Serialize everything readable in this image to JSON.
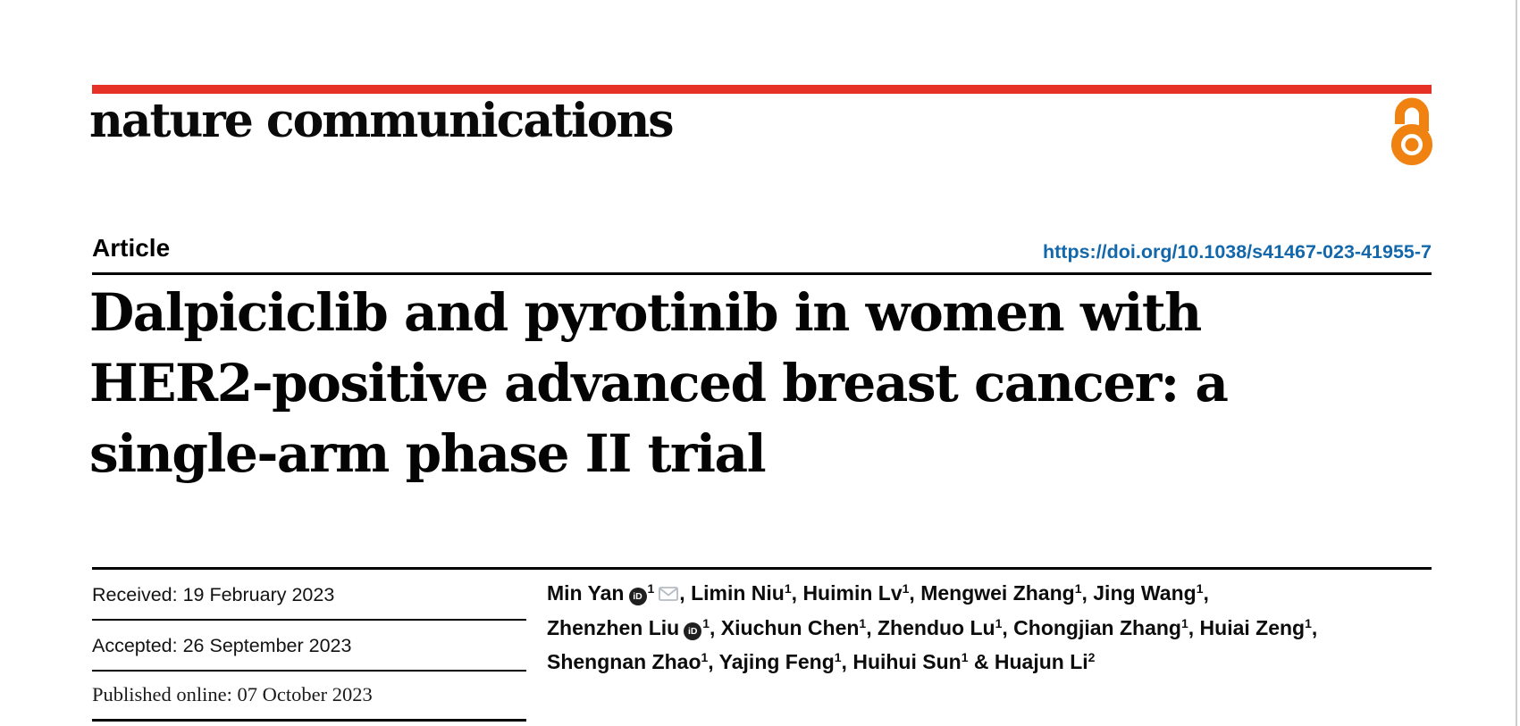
{
  "header": {
    "journal": "nature communications",
    "article_label": "Article",
    "doi": "https://doi.org/10.1038/s41467-023-41955-7"
  },
  "title": {
    "lines": [
      "Dalpiciclib and pyrotinib in women with",
      "HER2-positive advanced breast cancer: a",
      "single-arm phase II trial"
    ]
  },
  "dates": {
    "received": "Received: 19 February 2023",
    "accepted": "Accepted: 26 September 2023",
    "published": "Published online: 07 October 2023"
  },
  "authors": {
    "lines": [
      [
        {
          "t": "name",
          "v": "Min Yan"
        },
        {
          "t": "orcid"
        },
        {
          "t": "sup",
          "v": "1"
        },
        {
          "t": "mail"
        },
        {
          "t": "text",
          "v": ", "
        },
        {
          "t": "name",
          "v": "Limin Niu"
        },
        {
          "t": "sup",
          "v": "1"
        },
        {
          "t": "text",
          "v": ", "
        },
        {
          "t": "name",
          "v": "Huimin Lv"
        },
        {
          "t": "sup",
          "v": "1"
        },
        {
          "t": "text",
          "v": ", "
        },
        {
          "t": "name",
          "v": "Mengwei Zhang"
        },
        {
          "t": "sup",
          "v": "1"
        },
        {
          "t": "text",
          "v": ", "
        },
        {
          "t": "name",
          "v": "Jing Wang"
        },
        {
          "t": "sup",
          "v": "1"
        },
        {
          "t": "text",
          "v": ","
        }
      ],
      [
        {
          "t": "name",
          "v": "Zhenzhen Liu"
        },
        {
          "t": "orcid"
        },
        {
          "t": "sup",
          "v": "1"
        },
        {
          "t": "text",
          "v": ", "
        },
        {
          "t": "name",
          "v": "Xiuchun Chen"
        },
        {
          "t": "sup",
          "v": "1"
        },
        {
          "t": "text",
          "v": ", "
        },
        {
          "t": "name",
          "v": "Zhenduo Lu"
        },
        {
          "t": "sup",
          "v": "1"
        },
        {
          "t": "text",
          "v": ", "
        },
        {
          "t": "name",
          "v": "Chongjian Zhang"
        },
        {
          "t": "sup",
          "v": "1"
        },
        {
          "t": "text",
          "v": ", "
        },
        {
          "t": "name",
          "v": "Huiai Zeng"
        },
        {
          "t": "sup",
          "v": "1"
        },
        {
          "t": "text",
          "v": ","
        }
      ],
      [
        {
          "t": "name",
          "v": "Shengnan Zhao"
        },
        {
          "t": "sup",
          "v": "1"
        },
        {
          "t": "text",
          "v": ", "
        },
        {
          "t": "name",
          "v": "Yajing Feng"
        },
        {
          "t": "sup",
          "v": "1"
        },
        {
          "t": "text",
          "v": ", "
        },
        {
          "t": "name",
          "v": "Huihui Sun"
        },
        {
          "t": "sup",
          "v": "1"
        },
        {
          "t": "text",
          "v": " & "
        },
        {
          "t": "name",
          "v": "Huajun Li"
        },
        {
          "t": "sup",
          "v": "2"
        }
      ]
    ]
  },
  "icons": {
    "open_access": "open-access-padlock",
    "orcid": "orcid-id",
    "email": "envelope",
    "orcid_glyph": "iD"
  },
  "colors": {
    "brand_red": "#e53126",
    "open_access_orange": "#ef8211",
    "link_blue": "#1268ab",
    "rule_black": "#000000",
    "icon_gray": "#b5bcc3",
    "page_edge_gray": "#cdcdcd"
  }
}
